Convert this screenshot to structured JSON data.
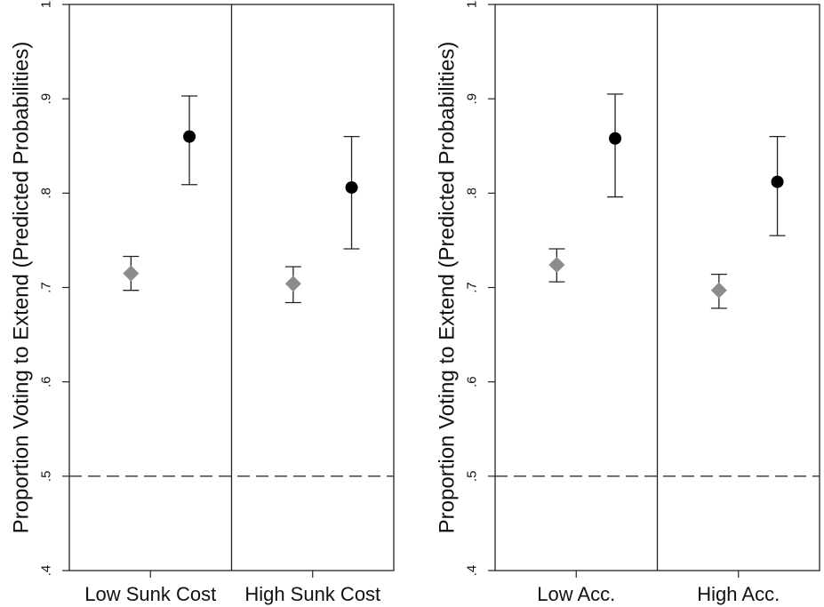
{
  "chart_data": [
    {
      "type": "scatter",
      "ylabel": "Proportion Voting to Extend (Predicted Probabilities)",
      "ylim": [
        0.4,
        1.0
      ],
      "yticks": [
        0.4,
        0.5,
        0.6,
        0.7,
        0.8,
        0.9,
        1.0
      ],
      "ytick_labels": [
        ".4",
        ".5",
        ".6",
        ".7",
        ".8",
        ".9",
        "1"
      ],
      "reference_line": 0.5,
      "groups": [
        "Low Sunk Cost",
        "High Sunk Cost"
      ],
      "series": [
        {
          "name": "diamond (gray)",
          "marker": "diamond",
          "color": "#8c8c8c",
          "values": [
            0.715,
            0.704
          ],
          "ci_low": [
            0.697,
            0.684
          ],
          "ci_high": [
            0.733,
            0.722
          ]
        },
        {
          "name": "circle (black)",
          "marker": "circle",
          "color": "#000000",
          "values": [
            0.86,
            0.806
          ],
          "ci_low": [
            0.809,
            0.741
          ],
          "ci_high": [
            0.903,
            0.86
          ]
        }
      ]
    },
    {
      "type": "scatter",
      "ylabel": "Proportion Voting to Extend (Predicted Probabilities)",
      "ylim": [
        0.4,
        1.0
      ],
      "yticks": [
        0.4,
        0.5,
        0.6,
        0.7,
        0.8,
        0.9,
        1.0
      ],
      "ytick_labels": [
        ".4",
        ".5",
        ".6",
        ".7",
        ".8",
        ".9",
        "1"
      ],
      "reference_line": 0.5,
      "groups": [
        "Low Acc.",
        "High Acc."
      ],
      "series": [
        {
          "name": "diamond (gray)",
          "marker": "diamond",
          "color": "#8c8c8c",
          "values": [
            0.724,
            0.697
          ],
          "ci_low": [
            0.706,
            0.678
          ],
          "ci_high": [
            0.741,
            0.714
          ]
        },
        {
          "name": "circle (black)",
          "marker": "circle",
          "color": "#000000",
          "values": [
            0.858,
            0.812
          ],
          "ci_low": [
            0.796,
            0.755
          ],
          "ci_high": [
            0.905,
            0.86
          ]
        }
      ]
    }
  ]
}
